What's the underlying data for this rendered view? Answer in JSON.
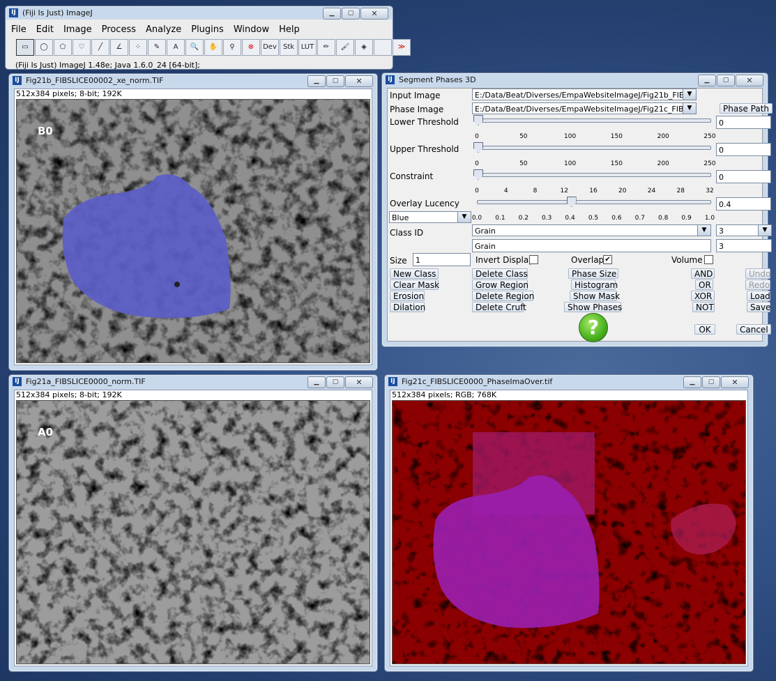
{
  "imagej": {
    "title": "(Fiji Is Just) ImageJ",
    "menu": [
      "File",
      "Edit",
      "Image",
      "Process",
      "Analyze",
      "Plugins",
      "Window",
      "Help"
    ],
    "tools": [
      {
        "icon": "rectangle-select-icon",
        "glyph": "▭"
      },
      {
        "icon": "oval-select-icon",
        "glyph": "◯"
      },
      {
        "icon": "polygon-select-icon",
        "glyph": "⬠"
      },
      {
        "icon": "freehand-select-icon",
        "glyph": "♡"
      },
      {
        "icon": "line-tool-icon",
        "glyph": "╱"
      },
      {
        "icon": "angle-tool-icon",
        "glyph": "∠"
      },
      {
        "icon": "point-tool-icon",
        "glyph": "⁘"
      },
      {
        "icon": "wand-tool-icon",
        "glyph": "✎"
      },
      {
        "icon": "text-tool-icon",
        "glyph": "A"
      },
      {
        "icon": "magnifier-icon",
        "glyph": "🔍"
      },
      {
        "icon": "hand-tool-icon",
        "glyph": "✋"
      },
      {
        "icon": "color-picker-icon",
        "glyph": "⚲"
      },
      {
        "icon": "stop-icon",
        "glyph": "⊗"
      },
      {
        "icon": "dev-menu-icon",
        "glyph": "Dev"
      },
      {
        "icon": "stk-menu-icon",
        "glyph": "Stk"
      },
      {
        "icon": "lut-menu-icon",
        "glyph": "LUT"
      },
      {
        "icon": "pencil-icon",
        "glyph": "✏"
      },
      {
        "icon": "brush-icon",
        "glyph": "🖌"
      },
      {
        "icon": "flood-fill-icon",
        "glyph": "◈"
      },
      {
        "icon": "empty-slot-icon",
        "glyph": ""
      },
      {
        "icon": "more-tools-icon",
        "glyph": "≫"
      }
    ],
    "status": "(Fiji Is Just) ImageJ 1.48e; Java 1.6.0_24 [64-bit];"
  },
  "win_b": {
    "title": "Fig21b_FIBSLICE00002_xe_norm.TIF",
    "info": "512x384 pixels; 8-bit; 192K",
    "label": "B0"
  },
  "win_a": {
    "title": "Fig21a_FIBSLICE0000_norm.TIF",
    "info": "512x384 pixels; 8-bit; 192K",
    "label": "A0"
  },
  "win_c": {
    "title": "Fig21c_FIBSLICE0000_PhaseImaOver.tif",
    "info": "512x384 pixels; RGB; 768K"
  },
  "dialog": {
    "title": "Segment Phases 3D",
    "input_image_label": "Input Image",
    "input_image_value": "E:/Data/Beat/Diverses/EmpaWebsiteImageJ/Fig21b_FIB...",
    "phase_image_label": "Phase Image",
    "phase_image_value": "E:/Data/Beat/Diverses/EmpaWebsiteImageJ/Fig21c_FIB...",
    "phase_path_button": "Phase Path",
    "lower_label": "Lower Threshold",
    "lower_value": "0",
    "upper_label": "Upper Threshold",
    "upper_value": "0",
    "threshold_ticks": [
      "0",
      "50",
      "100",
      "150",
      "200",
      "250"
    ],
    "constraint_label": "Constraint",
    "constraint_value": "0",
    "constraint_ticks": [
      "0",
      "4",
      "8",
      "12",
      "16",
      "20",
      "24",
      "28",
      "32"
    ],
    "lucency_label": "Overlay Lucency",
    "lucency_value": "0.4",
    "lucency_fraction": 0.4,
    "lucency_ticks": [
      "0.0",
      "0.1",
      "0.2",
      "0.3",
      "0.4",
      "0.5",
      "0.6",
      "0.7",
      "0.8",
      "0.9",
      "1.0"
    ],
    "color_value": "Blue",
    "class_id_label": "Class ID",
    "class_name": "Grain",
    "class_name_field": "Grain",
    "class_num": "3",
    "class_num_field": "3",
    "size_label": "Size",
    "size_value": "1",
    "invert_label": "Invert Display",
    "overlap_label": "Overlap",
    "overlap_checked": "✔",
    "volume_label": "Volume",
    "buttons": {
      "new_class": "New Class",
      "clear_mask": "Clear Mask",
      "erosion": "Erosion",
      "dilation": "Dilation",
      "delete_class": "Delete Class",
      "grow_region": "Grow Region",
      "delete_region": "Delete Region",
      "delete_cruft": "Delete Cruft",
      "phase_size": "Phase Size",
      "histogram": "Histogram",
      "show_mask": "Show Mask",
      "show_phases": "Show Phases",
      "and": "AND",
      "or": "OR",
      "xor": "XOR",
      "not": "NOT",
      "undo": "Undo",
      "redo": "Redo",
      "load": "Load",
      "save": "Save",
      "ok": "OK",
      "cancel": "Cancel",
      "help": "?"
    }
  }
}
